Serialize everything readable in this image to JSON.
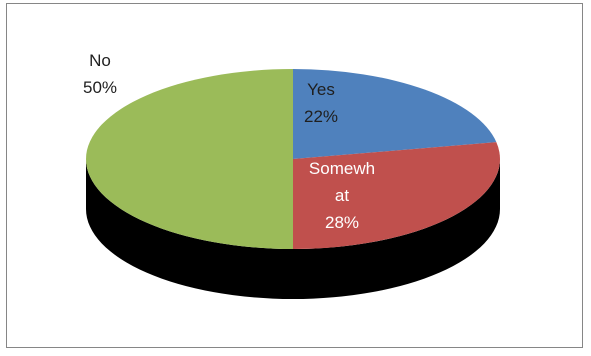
{
  "chart_data": {
    "type": "pie",
    "style": "3d",
    "categories": [
      "Yes",
      "Somewhat",
      "No"
    ],
    "values": [
      22,
      28,
      50
    ],
    "data_labels": [
      [
        "Yes",
        "22%"
      ],
      [
        "Somewh",
        "at",
        "28%"
      ],
      [
        "No",
        "50%"
      ]
    ],
    "colors": [
      "#4f81bd",
      "#c0504d",
      "#9bbb59"
    ],
    "side_colors": [
      "#385d8a",
      "#632523",
      "#4f6228"
    ],
    "title": "",
    "legend": "none"
  }
}
